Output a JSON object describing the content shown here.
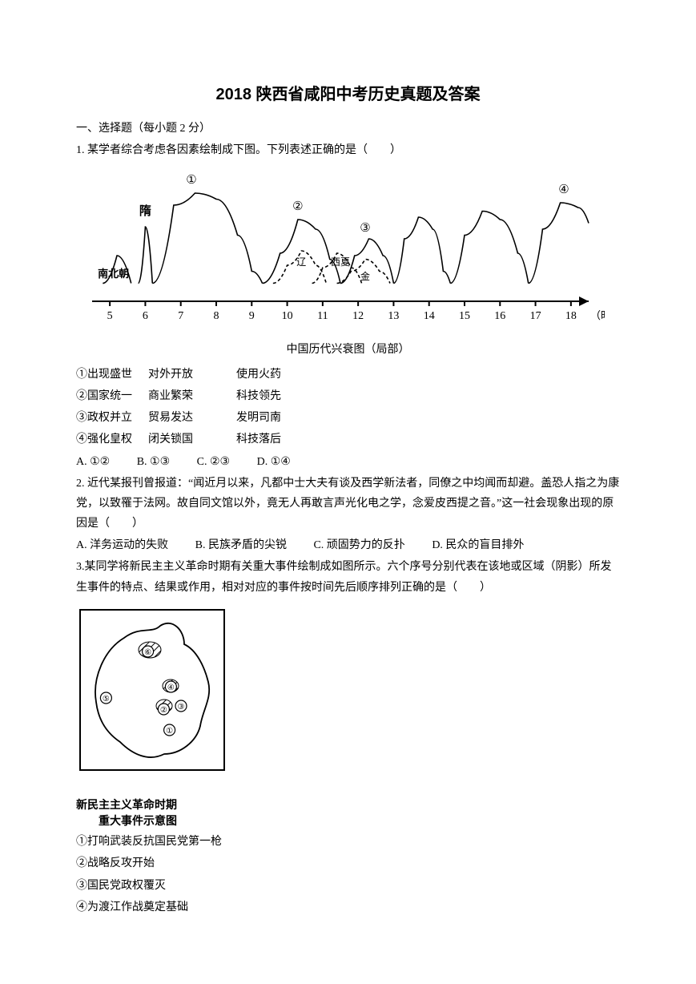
{
  "title": "2018 陕西省咸阳中考历史真题及答案",
  "section1": "一、选择题（每小题 2 分）",
  "q1": {
    "stem": "1. 某学者综合考虑各因素绘制成下图。下列表述正确的是（　　）",
    "chart": {
      "type": "line",
      "xlim": [
        4.5,
        18.5
      ],
      "xticks": [
        5,
        6,
        7,
        8,
        9,
        10,
        11,
        12,
        13,
        14,
        15,
        16,
        17,
        18
      ],
      "x_axis_label": "（时间：世纪）",
      "caption": "中国历代兴衰图（局部）",
      "left_labels": [
        "南北朝",
        "隋"
      ],
      "peak_labels": [
        "①",
        "②",
        "③",
        "④"
      ],
      "overlap_labels": [
        "辽",
        "西夏",
        "金"
      ],
      "line_color": "#000000",
      "background": "#ffffff",
      "curves": [
        {
          "name": "nanbei",
          "pts": [
            [
              4.8,
              15
            ],
            [
              5.2,
              38
            ],
            [
              5.6,
              15
            ]
          ]
        },
        {
          "name": "sui",
          "pts": [
            [
              5.8,
              15
            ],
            [
              6.0,
              62
            ],
            [
              6.2,
              15
            ]
          ]
        },
        {
          "name": "peak1",
          "pts": [
            [
              6.2,
              15
            ],
            [
              6.8,
              80
            ],
            [
              7.4,
              90
            ],
            [
              8.0,
              85
            ],
            [
              8.6,
              55
            ],
            [
              9.0,
              25
            ],
            [
              9.3,
              15
            ]
          ]
        },
        {
          "name": "peak2",
          "pts": [
            [
              9.3,
              15
            ],
            [
              9.8,
              40
            ],
            [
              10.3,
              68
            ],
            [
              10.8,
              60
            ],
            [
              11.2,
              35
            ],
            [
              11.5,
              15
            ]
          ]
        },
        {
          "name": "liao",
          "pts": [
            [
              9.6,
              15
            ],
            [
              10.0,
              30
            ],
            [
              10.4,
              42
            ],
            [
              10.8,
              30
            ],
            [
              11.1,
              15
            ]
          ],
          "dash": true
        },
        {
          "name": "xixia",
          "pts": [
            [
              10.7,
              15
            ],
            [
              11.0,
              28
            ],
            [
              11.4,
              40
            ],
            [
              11.8,
              28
            ],
            [
              12.1,
              15
            ]
          ],
          "dash": true
        },
        {
          "name": "peak3",
          "pts": [
            [
              11.5,
              15
            ],
            [
              11.9,
              38
            ],
            [
              12.3,
              52
            ],
            [
              12.7,
              38
            ],
            [
              13.0,
              15
            ]
          ]
        },
        {
          "name": "jin",
          "pts": [
            [
              11.4,
              15
            ],
            [
              11.8,
              25
            ],
            [
              12.2,
              35
            ],
            [
              12.6,
              25
            ],
            [
              12.9,
              15
            ]
          ],
          "dash": true
        },
        {
          "name": "yuan",
          "pts": [
            [
              13.0,
              15
            ],
            [
              13.3,
              52
            ],
            [
              13.7,
              70
            ],
            [
              14.1,
              60
            ],
            [
              14.4,
              25
            ],
            [
              14.6,
              15
            ]
          ]
        },
        {
          "name": "ming",
          "pts": [
            [
              14.6,
              15
            ],
            [
              15.0,
              55
            ],
            [
              15.5,
              75
            ],
            [
              16.0,
              68
            ],
            [
              16.5,
              40
            ],
            [
              16.8,
              15
            ]
          ]
        },
        {
          "name": "peak4",
          "pts": [
            [
              16.8,
              15
            ],
            [
              17.2,
              60
            ],
            [
              17.7,
              82
            ],
            [
              18.2,
              78
            ],
            [
              18.5,
              65
            ]
          ]
        }
      ]
    },
    "rows": [
      {
        "tag": "①出现盛世",
        "c1": "对外开放",
        "c2": "使用火药"
      },
      {
        "tag": "②国家统一",
        "c1": "商业繁荣",
        "c2": "科技领先"
      },
      {
        "tag": "③政权并立",
        "c1": "贸易发达",
        "c2": "发明司南"
      },
      {
        "tag": "④强化皇权",
        "c1": "闭关锁国",
        "c2": "科技落后"
      }
    ],
    "choices": {
      "a": "A. ①②",
      "b": "B. ①③",
      "c": "C. ②③",
      "d": "D. ①④"
    }
  },
  "q2": {
    "stem": "2. 近代某报刊曾报道：“闻近月以来，凡都中士大夫有谈及西学新法者，同僚之中均闻而却避。盖恐人指之为康党，以致罹于法网。故自同文馆以外，竟无人再敢言声光化电之学，念爱皮西提之音。”这一社会现象出现的原因是（　　）",
    "choices": {
      "a": "A. 洋务运动的失败",
      "b": "B. 民族矛盾的尖锐",
      "c": "C. 顽固势力的反扑",
      "d": "D. 民众的盲目排外"
    }
  },
  "q3": {
    "stem": "3.某同学将新民主主义革命时期有关重大事件绘制成如图所示。六个序号分别代表在该地或区域（阴影）所发生事件的特点、结果或作用，相对对应的事件按时间先后顺序排列正确的是（　　）",
    "map": {
      "caption_l1": "新民主主义革命时期",
      "caption_l2": "重大事件示意图",
      "markers": [
        "①",
        "②",
        "③",
        "④",
        "⑤",
        "⑥"
      ],
      "border_color": "#000000",
      "hatch_color": "#000000",
      "positions": {
        "①": [
          0.62,
          0.75
        ],
        "②": [
          0.58,
          0.62
        ],
        "③": [
          0.7,
          0.6
        ],
        "④": [
          0.63,
          0.48
        ],
        "⑤": [
          0.18,
          0.55
        ],
        "⑥": [
          0.47,
          0.26
        ]
      }
    },
    "items": [
      "①打响武装反抗国民党第一枪",
      "②战略反攻开始",
      "③国民党政权覆灭",
      "④为渡江作战奠定基础"
    ]
  }
}
